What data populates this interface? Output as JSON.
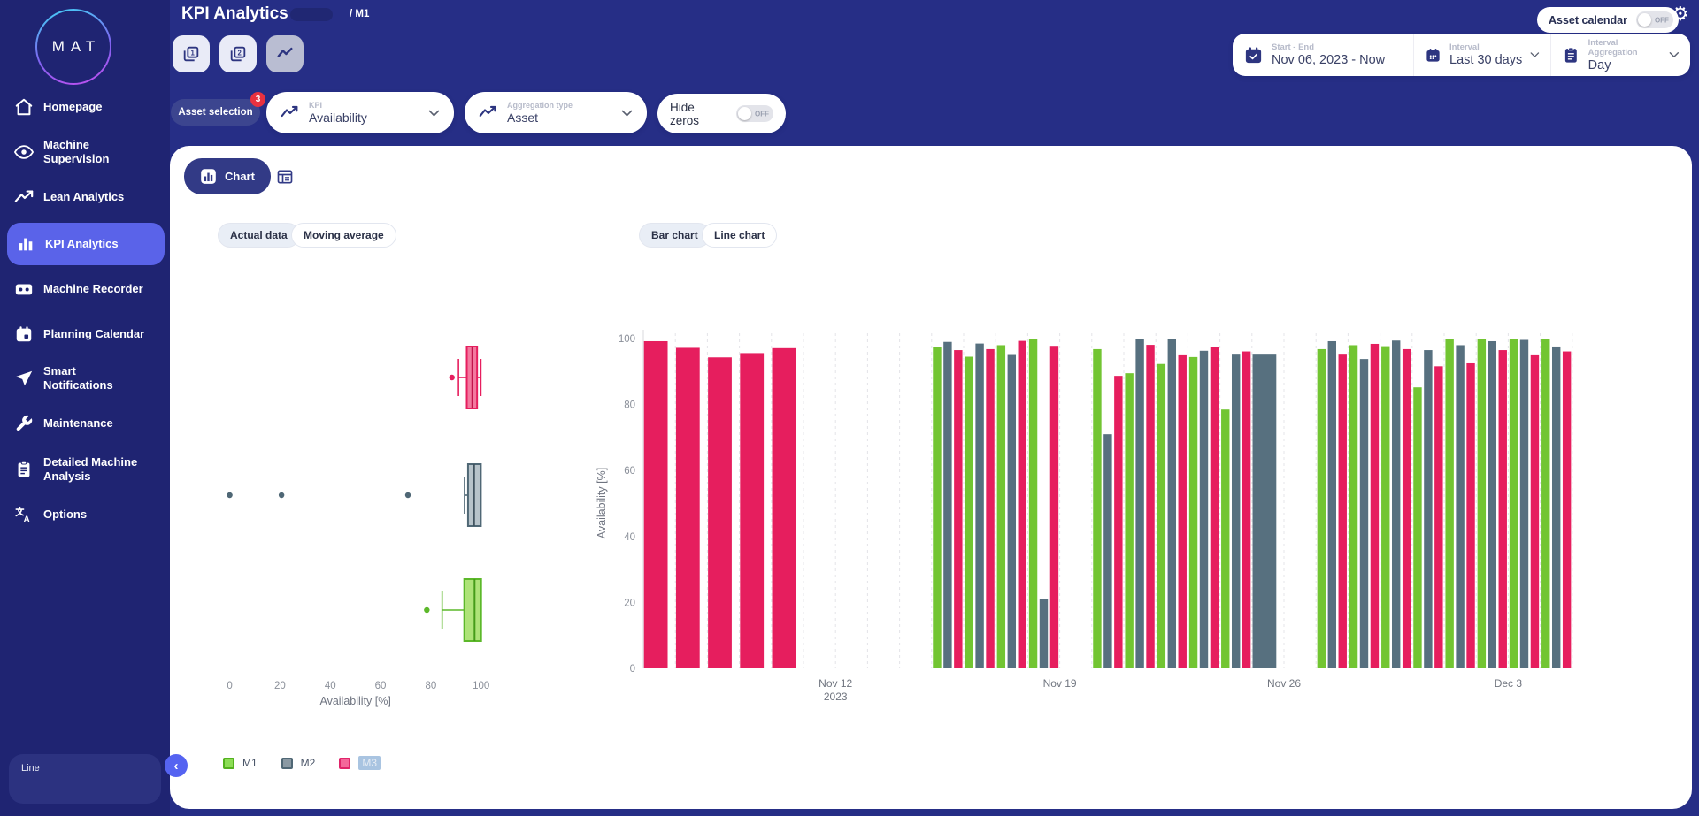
{
  "app": {
    "logo_text": "MAT",
    "title": "KPI Analytics",
    "breadcrumb": "/ M1"
  },
  "sidebar": {
    "items": [
      {
        "label": "Homepage",
        "icon": "home-icon"
      },
      {
        "label": "Machine Supervision",
        "icon": "eye-icon"
      },
      {
        "label": "Lean Analytics",
        "icon": "trending-up-icon"
      },
      {
        "label": "KPI Analytics",
        "icon": "bar-chart-icon",
        "active": true
      },
      {
        "label": "Machine Recorder",
        "icon": "recorder-icon"
      },
      {
        "label": "Planning Calendar",
        "icon": "calendar-icon"
      },
      {
        "label": "Smart Notifications",
        "icon": "send-icon"
      },
      {
        "label": "Maintenance",
        "icon": "wrench-icon"
      },
      {
        "label": "Detailed Machine Analysis",
        "icon": "clipboard-icon"
      },
      {
        "label": "Options",
        "icon": "translate-icon"
      }
    ],
    "collapse_tooltip": "Line"
  },
  "topbar": {
    "views": [
      {
        "glyph": "1"
      },
      {
        "glyph": "2"
      },
      {
        "glyph": "trend",
        "selected": true
      }
    ],
    "asset_calendar": {
      "label": "Asset calendar",
      "state": "OFF"
    },
    "range": {
      "start_end": {
        "label": "Start - End",
        "value": "Nov 06, 2023 - Now"
      },
      "interval": {
        "label": "Interval",
        "value": "Last 30 days"
      },
      "aggregation": {
        "label": "Interval Aggregation",
        "value": "Day"
      }
    }
  },
  "filters": {
    "asset_selection": {
      "label": "Asset selection",
      "badge": "3"
    },
    "kpi": {
      "label": "KPI",
      "value": "Availability"
    },
    "aggregation_type": {
      "label": "Aggregation type",
      "value": "Asset"
    },
    "hide_zeros": {
      "label": "Hide zeros",
      "state": "OFF"
    }
  },
  "view_tabs": {
    "chart": "Chart"
  },
  "chart_controls": {
    "actual_data": "Actual data",
    "moving_average": "Moving average",
    "bar_chart": "Bar chart",
    "line_chart": "Line chart",
    "selected_data": "Actual data",
    "selected_type": "Bar chart"
  },
  "legend": [
    {
      "label": "M1",
      "fill": "#8cdd55",
      "border": "#53b11e"
    },
    {
      "label": "M2",
      "fill": "#8a99a3",
      "border": "#4f6775"
    },
    {
      "label": "M3",
      "fill": "#f4679a",
      "border": "#e0246a",
      "highlighted": true
    }
  ],
  "chart_data": [
    {
      "type": "boxplot",
      "orientation": "horizontal",
      "xlabel": "Availability [%]",
      "xticks": [
        0,
        20,
        40,
        60,
        80,
        100
      ],
      "xlim": [
        0,
        105
      ],
      "series": [
        {
          "name": "M3",
          "color": "#e61e5e",
          "fill": "#f3799f",
          "median_color": "#c0134b",
          "low": 91,
          "q1": 94.3,
          "median": 96.5,
          "q3": 98.4,
          "high": 99.9,
          "outliers": [
            88.4
          ]
        },
        {
          "name": "M2",
          "color": "#4f6775",
          "fill": "#b7c3ca",
          "median_color": "#41535f",
          "low": 93.4,
          "q1": 94.8,
          "median": 97.2,
          "q3": 99.9,
          "high": 99.9,
          "outliers": [
            0,
            20.6,
            70.9
          ]
        },
        {
          "name": "M1",
          "color": "#5cb82a",
          "fill": "#aee378",
          "median_color": "#459c1a",
          "low": 84.5,
          "q1": 93.3,
          "median": 97.4,
          "q3": 100,
          "high": 100,
          "outliers": [
            78.4
          ]
        }
      ]
    },
    {
      "type": "bar",
      "ylabel": "Availability [%]",
      "yticks": [
        0,
        20,
        40,
        60,
        80,
        100
      ],
      "ylim": [
        0,
        100
      ],
      "grid": "vertical-dashed",
      "colors": {
        "M1": "#72c532",
        "M2": "#57707f",
        "M3": "#e61e5e"
      },
      "x_axis_labels": [
        {
          "boundary": 6,
          "lines": [
            "Nov 12",
            "2023"
          ]
        },
        {
          "boundary": 13,
          "lines": [
            "Nov 19"
          ]
        },
        {
          "boundary": 20,
          "lines": [
            "Nov 26"
          ]
        },
        {
          "boundary": 27,
          "lines": [
            "Dec 3"
          ]
        }
      ],
      "days": [
        {
          "date": "Nov 6",
          "M3": 99.2,
          "wide": true
        },
        {
          "date": "Nov 7",
          "M3": 97.2,
          "wide": true
        },
        {
          "date": "Nov 8",
          "M3": 94.3,
          "wide": true
        },
        {
          "date": "Nov 9",
          "M3": 95.6,
          "wide": true
        },
        {
          "date": "Nov 10",
          "M3": 97.1,
          "wide": true
        },
        {
          "date": "Nov 11"
        },
        {
          "date": "Nov 12"
        },
        {
          "date": "Nov 13"
        },
        {
          "date": "Nov 14"
        },
        {
          "date": "Nov 15",
          "M1": 97.5,
          "M2": 99.0,
          "M3": 96.5
        },
        {
          "date": "Nov 16",
          "M1": 94.5,
          "M2": 98.5,
          "M3": 96.8
        },
        {
          "date": "Nov 17",
          "M1": 98.0,
          "M2": 95.3,
          "M3": 99.3
        },
        {
          "date": "Nov 18",
          "M1": 99.8,
          "M2": 21.0,
          "M3": 97.8
        },
        {
          "date": "Nov 19"
        },
        {
          "date": "Nov 20",
          "M1": 96.8,
          "M2": 71.0,
          "M3": 88.7
        },
        {
          "date": "Nov 21",
          "M1": 89.5,
          "M2": 100,
          "M3": 98.1
        },
        {
          "date": "Nov 22",
          "M1": 92.3,
          "M2": 100,
          "M3": 95.2
        },
        {
          "date": "Nov 23",
          "M1": 94.4,
          "M2": 96.3,
          "M3": 97.5
        },
        {
          "date": "Nov 24",
          "M1": 78.5,
          "M2": 95.4,
          "M3": 96.1
        },
        {
          "date": "Nov 25",
          "M2": 95.4,
          "wide": true
        },
        {
          "date": "Nov 26"
        },
        {
          "date": "Nov 27",
          "M1": 96.8,
          "M2": 99.2,
          "M3": 95.4
        },
        {
          "date": "Nov 28",
          "M1": 98.0,
          "M2": 93.8,
          "M3": 98.4
        },
        {
          "date": "Nov 29",
          "M1": 97.7,
          "M2": 99.4,
          "M3": 96.8
        },
        {
          "date": "Nov 30",
          "M1": 85.2,
          "M2": 96.5,
          "M3": 91.6
        },
        {
          "date": "Dec 1",
          "M1": 100,
          "M2": 98.0,
          "M3": 92.5
        },
        {
          "date": "Dec 2",
          "M1": 100,
          "M2": 99.2,
          "M3": 96.5
        },
        {
          "date": "Dec 3",
          "M1": 100,
          "M2": 99.6,
          "M3": 95.2
        },
        {
          "date": "Dec 4",
          "M1": 100,
          "M2": 97.6,
          "M3": 96.1
        },
        {
          "date": "Dec 5"
        }
      ]
    }
  ]
}
